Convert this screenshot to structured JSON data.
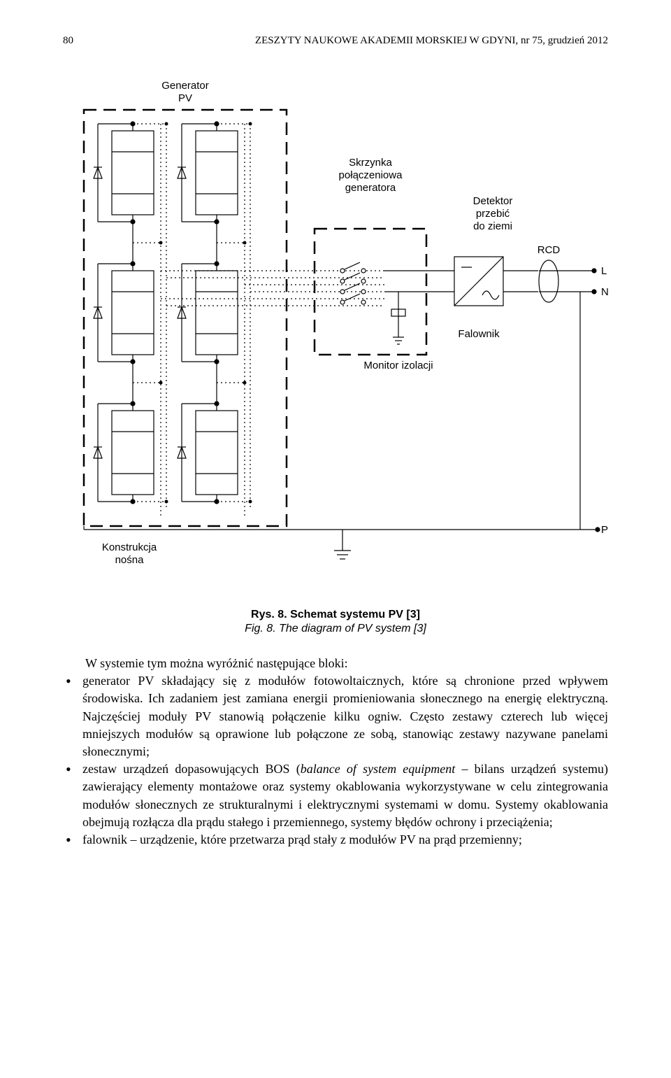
{
  "header": {
    "page": "80",
    "journal": "ZESZYTY NAUKOWE AKADEMII MORSKIEJ W GDYNI, nr 75, grudzień 2012"
  },
  "diagram": {
    "type": "block-schematic",
    "labels": {
      "generator": "Generator\nPV",
      "junction_box": "Skrzynka\npołączeniowa\ngeneratora",
      "detector": "Detektor\nprzebić\ndo ziemi",
      "rcd": "RCD",
      "L": "L",
      "N": "N",
      "inverter": "Falownik",
      "isolation_monitor": "Monitor izolacji",
      "structure": "Konstrukcja\nnośna",
      "PE": "PE"
    },
    "colors": {
      "stroke": "#000000",
      "bg": "#ffffff",
      "text": "#000000"
    },
    "line_width": 1.2,
    "dash_long": "18 10",
    "dash_dot": "2 4",
    "font_size_label": 15
  },
  "caption": {
    "line1": "Rys. 8. Schemat systemu PV [3]",
    "line2": "Fig. 8. The diagram of PV system [3]"
  },
  "paragraph_intro": "W systemie tym można wyróżnić następujące bloki:",
  "bullets": [
    "generator PV składający się z modułów fotowoltaicznych, które są chronione przed wpływem środowiska. Ich zadaniem jest zamiana energii promieniowania słonecznego na energię elektryczną. Najczęściej moduły PV stanowią połączenie kilku ogniw. Często zestawy czterech lub więcej mniejszych modułów są oprawione lub połączone ze sobą, stanowiąc zestawy nazywane panelami słonecznymi;",
    "zestaw urządzeń dopasowujących BOS (balance of system equipment – bilans urządzeń systemu) zawierający elementy montażowe oraz systemy okablowania wykorzystywane w celu zintegrowania modułów słonecznych ze strukturalnymi i elektrycznymi systemami w domu. Systemy okablowania obejmują rozłącza dla prądu stałego i przemiennego, systemy błędów ochrony i przeciążenia;",
    "falownik – urządzenie, które przetwarza prąd stały z modułów PV na prąd przemienny;"
  ],
  "bullet_italic_ranges": {
    "1": "balance of system equipment"
  }
}
